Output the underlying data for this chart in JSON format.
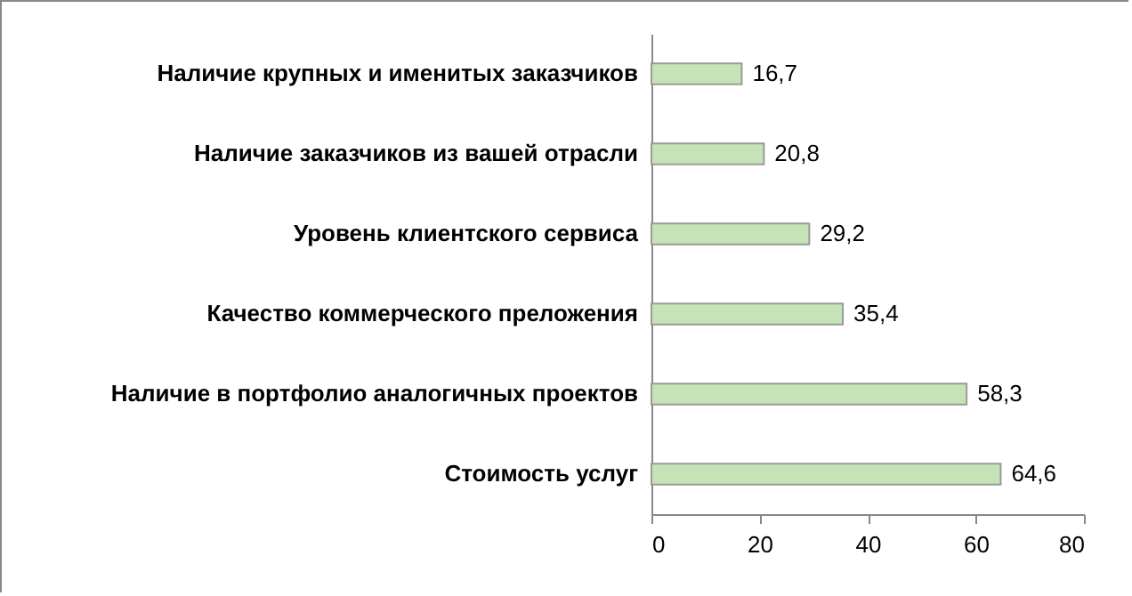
{
  "chart_data": {
    "type": "bar",
    "orientation": "horizontal",
    "categories": [
      "Наличие крупных и именитых заказчиков",
      "Наличие заказчиков из вашей отрасли ",
      "Уровень клиентского сервиса",
      "Качество коммерческого преложения",
      "Наличие в портфолио аналогичных проектов",
      "Стоимость  услуг"
    ],
    "values": [
      16.7,
      20.8,
      29.2,
      35.4,
      58.3,
      64.6
    ],
    "value_labels": [
      "16,7",
      "20,8",
      "29,2",
      "35,4",
      "58,3",
      "64,6"
    ],
    "color": "#c6e3b8",
    "xlim": [
      0,
      80
    ],
    "xticks": [
      0,
      20,
      40,
      60,
      80
    ],
    "grid": false
  }
}
